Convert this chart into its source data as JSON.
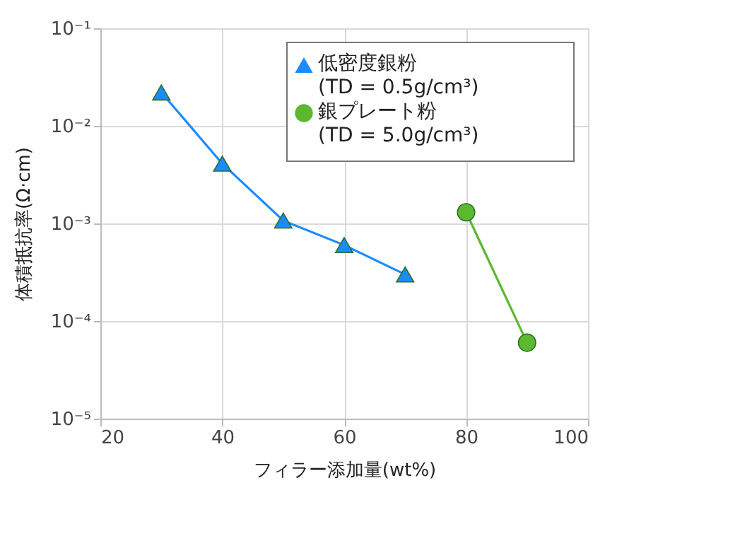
{
  "chart_data": {
    "type": "line",
    "xlabel": "フィラー添加量(wt%)",
    "ylabel": "体積抵抗率(Ω·cm)",
    "xlim": [
      20,
      100
    ],
    "xticks": [
      20,
      40,
      60,
      80,
      100
    ],
    "ylim": [
      1e-05,
      0.1
    ],
    "yticks": [
      {
        "value": 0.1,
        "label": "10⁻¹"
      },
      {
        "value": 0.01,
        "label": "10⁻²"
      },
      {
        "value": 0.001,
        "label": "10⁻³"
      },
      {
        "value": 0.0001,
        "label": "10⁻⁴"
      },
      {
        "value": 1e-05,
        "label": "10⁻⁵"
      }
    ],
    "log": true,
    "grid": true,
    "legend": "top right",
    "series": [
      {
        "name": "低密度銀粉\n(TD = 0.5g/cm³)",
        "color": "#1a8cff",
        "marker": "triangle",
        "x": [
          30,
          40,
          50,
          60,
          70
        ],
        "values": [
          0.022,
          0.0041,
          0.00107,
          0.0006,
          0.0003
        ]
      },
      {
        "name": "銀プレート粉\n(TD = 5.0g/cm³)",
        "color": "#5cb82e",
        "marker": "circle",
        "x": [
          80,
          90
        ],
        "values": [
          0.0013,
          6e-05
        ]
      }
    ]
  }
}
